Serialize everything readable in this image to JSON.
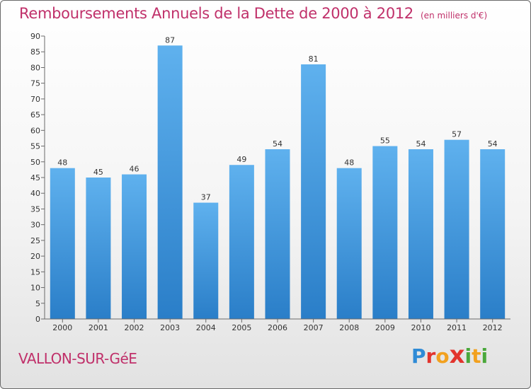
{
  "header": {
    "title": "Remboursements Annuels de la Dette de 2000 à 2012",
    "unit": "(en milliers d'€)"
  },
  "footer": {
    "city": "VALLON-SUR-GéE",
    "brand_letters": [
      "P",
      "r",
      "o",
      "x",
      "i",
      "t",
      "i"
    ]
  },
  "colors": {
    "title": "#c0306a",
    "bar_top": "#5fb1ee",
    "bar_bottom": "#2a7ec8"
  },
  "chart_data": {
    "type": "bar",
    "title": "Remboursements Annuels de la Dette de 2000 à 2012",
    "xlabel": "",
    "ylabel": "",
    "categories": [
      "2000",
      "2001",
      "2002",
      "2003",
      "2004",
      "2005",
      "2006",
      "2007",
      "2008",
      "2009",
      "2010",
      "2011",
      "2012"
    ],
    "values": [
      48,
      45,
      46,
      87,
      37,
      49,
      54,
      81,
      48,
      55,
      54,
      57,
      54
    ],
    "ylim": [
      0,
      90
    ],
    "yticks": [
      0,
      5,
      10,
      15,
      20,
      25,
      30,
      35,
      40,
      45,
      50,
      55,
      60,
      65,
      70,
      75,
      80,
      85,
      90
    ],
    "grid": false,
    "data_labels": true,
    "legend": "none"
  }
}
